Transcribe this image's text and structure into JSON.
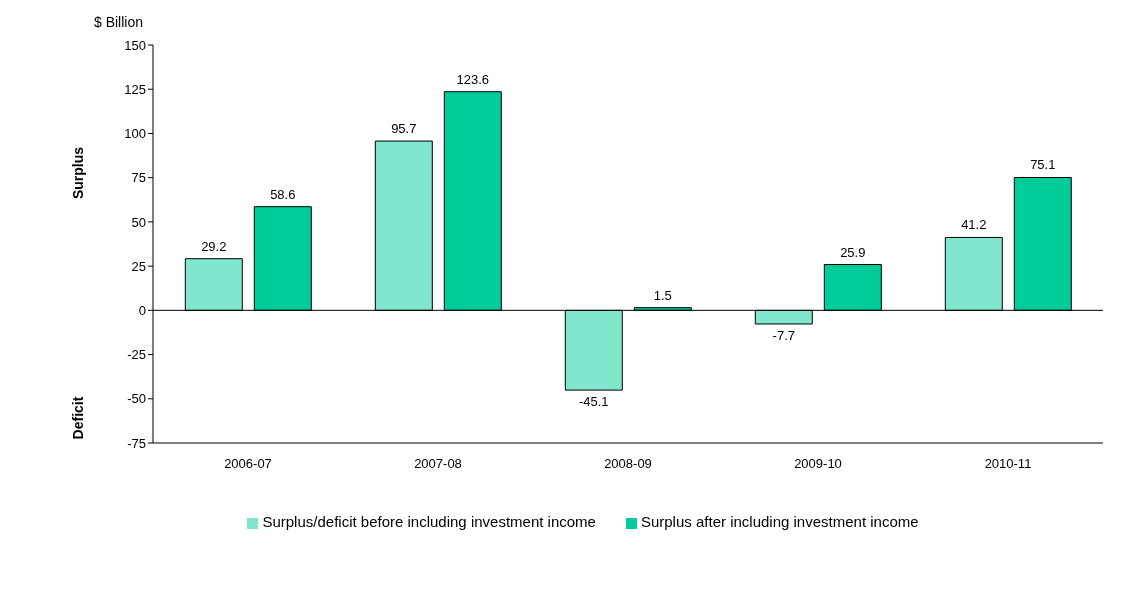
{
  "chart_data": {
    "type": "bar",
    "ylabel": "$ Billion",
    "annotations": [
      "Surplus",
      "Deficit"
    ],
    "categories": [
      "2006-07",
      "2007-08",
      "2008-09",
      "2009-10",
      "2010-11"
    ],
    "series": [
      {
        "name": "Surplus/deficit before including investment income",
        "color": "#80e6cc",
        "values": [
          29.2,
          95.7,
          -45.1,
          -7.7,
          41.2
        ]
      },
      {
        "name": "Surplus after including investment income",
        "color": "#00cc99",
        "values": [
          58.6,
          123.6,
          1.5,
          25.9,
          75.1
        ]
      }
    ],
    "ref_lines": [
      {
        "axis": "y",
        "value": 0,
        "color": "#000000"
      }
    ],
    "ylim": [
      -75,
      150
    ],
    "yticks": [
      -75,
      -50,
      -25,
      0,
      25,
      50,
      75,
      100,
      125,
      150
    ],
    "grid": false,
    "legend": "bottom",
    "data_labels": true
  }
}
